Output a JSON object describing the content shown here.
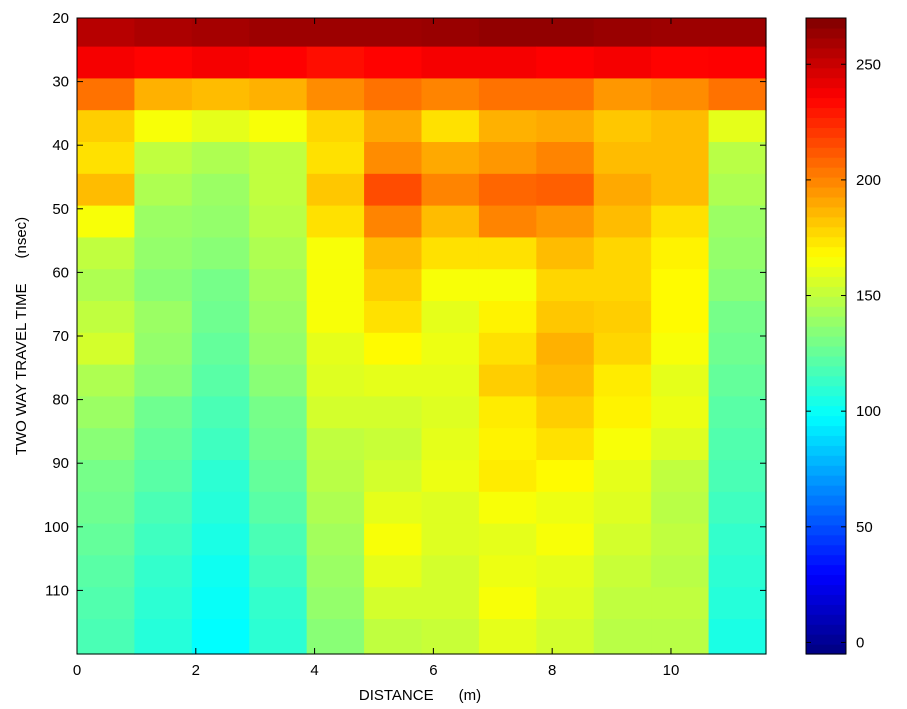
{
  "chart_data": {
    "type": "heatmap",
    "description_source": "ground penetrating radar profile",
    "xlabel": "DISTANCE      (m)",
    "ylabel": "TWO WAY TRAVEL TIME      (nsec)",
    "xlim": [
      0,
      11.6
    ],
    "ylim": [
      20,
      120
    ],
    "y_reversed": true,
    "x_ticks": [
      0,
      2,
      4,
      6,
      8,
      10
    ],
    "y_ticks": [
      20,
      30,
      40,
      50,
      60,
      70,
      80,
      90,
      100,
      110
    ],
    "colormap": "jet",
    "colorbar": {
      "range": [
        -5,
        270
      ],
      "ticks": [
        0,
        50,
        100,
        150,
        200,
        250
      ]
    },
    "grid": false,
    "rows": [
      {
        "t": 22,
        "values": [
          255,
          258,
          260,
          262,
          262,
          262,
          263,
          265,
          265,
          263,
          262,
          262
        ]
      },
      {
        "t": 27,
        "values": [
          238,
          235,
          238,
          236,
          232,
          235,
          238,
          238,
          236,
          238,
          235,
          236
        ]
      },
      {
        "t": 32,
        "values": [
          205,
          188,
          185,
          188,
          198,
          205,
          200,
          205,
          205,
          195,
          198,
          205
        ]
      },
      {
        "t": 37,
        "values": [
          180,
          165,
          160,
          165,
          178,
          190,
          175,
          188,
          190,
          182,
          185,
          160
        ]
      },
      {
        "t": 42,
        "values": [
          175,
          150,
          145,
          150,
          175,
          198,
          190,
          195,
          200,
          185,
          185,
          148
        ]
      },
      {
        "t": 47,
        "values": [
          185,
          145,
          140,
          150,
          182,
          215,
          200,
          208,
          210,
          190,
          185,
          145
        ]
      },
      {
        "t": 52,
        "values": [
          165,
          140,
          138,
          148,
          175,
          200,
          185,
          200,
          195,
          185,
          175,
          140
        ]
      },
      {
        "t": 57,
        "values": [
          150,
          138,
          135,
          145,
          165,
          185,
          175,
          175,
          185,
          178,
          170,
          138
        ]
      },
      {
        "t": 62,
        "values": [
          145,
          135,
          130,
          142,
          165,
          180,
          165,
          165,
          178,
          178,
          168,
          135
        ]
      },
      {
        "t": 67,
        "values": [
          150,
          140,
          128,
          140,
          165,
          175,
          160,
          170,
          182,
          180,
          168,
          130
        ]
      },
      {
        "t": 72,
        "values": [
          155,
          138,
          125,
          138,
          160,
          168,
          162,
          175,
          188,
          178,
          165,
          128
        ]
      },
      {
        "t": 77,
        "values": [
          145,
          135,
          122,
          135,
          158,
          160,
          160,
          180,
          185,
          172,
          160,
          125
        ]
      },
      {
        "t": 82,
        "values": [
          140,
          128,
          118,
          130,
          155,
          155,
          158,
          172,
          180,
          170,
          162,
          122
        ]
      },
      {
        "t": 87,
        "values": [
          135,
          125,
          115,
          128,
          150,
          152,
          160,
          170,
          175,
          165,
          158,
          120
        ]
      },
      {
        "t": 92,
        "values": [
          130,
          122,
          110,
          125,
          148,
          155,
          162,
          172,
          168,
          160,
          150,
          118
        ]
      },
      {
        "t": 97,
        "values": [
          128,
          118,
          108,
          122,
          145,
          160,
          158,
          165,
          162,
          158,
          148,
          115
        ]
      },
      {
        "t": 102,
        "values": [
          125,
          115,
          105,
          118,
          142,
          165,
          158,
          160,
          165,
          155,
          150,
          112
        ]
      },
      {
        "t": 107,
        "values": [
          122,
          112,
          102,
          115,
          140,
          160,
          155,
          162,
          160,
          152,
          148,
          110
        ]
      },
      {
        "t": 112,
        "values": [
          120,
          110,
          100,
          112,
          138,
          155,
          155,
          165,
          158,
          150,
          150,
          108
        ]
      },
      {
        "t": 117,
        "values": [
          118,
          108,
          98,
          110,
          135,
          150,
          152,
          160,
          155,
          148,
          148,
          105
        ]
      }
    ]
  }
}
